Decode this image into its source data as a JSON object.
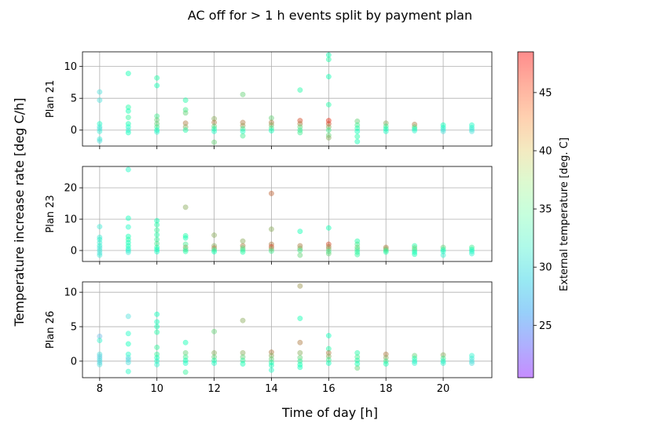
{
  "figure": {
    "title": "AC off for > 1 h events split by payment plan",
    "xlabel": "Time of day [h]",
    "ylabel": "Temperature increase rate [deg C/h]"
  },
  "colorbar": {
    "label": "External temperature [deg. C]",
    "range": [
      20.5,
      48.5
    ],
    "ticks": [
      25,
      30,
      35,
      40,
      45
    ],
    "colormap": "rainbow",
    "alpha": 0.45
  },
  "chart_data": [
    {
      "type": "scatter",
      "panel_label": "Plan 21",
      "xlim": [
        7.4,
        21.7
      ],
      "ylim": [
        -2.5,
        12.3
      ],
      "xticks": [
        8,
        10,
        12,
        14,
        16,
        18,
        20
      ],
      "yticks": [
        0,
        5,
        10
      ],
      "show_xtick_labels": false,
      "grid": true,
      "points": [
        [
          8,
          6.0,
          30
        ],
        [
          8,
          4.7,
          30
        ],
        [
          8,
          1.0,
          33
        ],
        [
          8,
          0.5,
          31
        ],
        [
          8,
          0.2,
          30
        ],
        [
          8,
          -0.2,
          31
        ],
        [
          8,
          -1.4,
          31
        ],
        [
          8,
          -1.7,
          30
        ],
        [
          9,
          8.9,
          35
        ],
        [
          9,
          3.6,
          36
        ],
        [
          9,
          3.0,
          35
        ],
        [
          9,
          2.0,
          37
        ],
        [
          9,
          1.0,
          35
        ],
        [
          9,
          0.5,
          33
        ],
        [
          9,
          0.0,
          31
        ],
        [
          9,
          -0.4,
          34
        ],
        [
          10,
          8.2,
          36
        ],
        [
          10,
          7.0,
          35
        ],
        [
          10,
          2.2,
          38
        ],
        [
          10,
          1.6,
          40
        ],
        [
          10,
          1.0,
          40
        ],
        [
          10,
          0.5,
          38
        ],
        [
          10,
          0.0,
          34
        ],
        [
          10,
          -0.3,
          32
        ],
        [
          11,
          4.7,
          36
        ],
        [
          11,
          3.2,
          38
        ],
        [
          11,
          2.7,
          40
        ],
        [
          11,
          1.1,
          44
        ],
        [
          11,
          0.5,
          42
        ],
        [
          11,
          0.0,
          36
        ],
        [
          12,
          1.8,
          42
        ],
        [
          12,
          1.2,
          44
        ],
        [
          12,
          0.6,
          40
        ],
        [
          12,
          0.2,
          36
        ],
        [
          12,
          -0.2,
          33
        ],
        [
          12,
          -1.9,
          40
        ],
        [
          13,
          5.6,
          40
        ],
        [
          13,
          1.2,
          44
        ],
        [
          13,
          0.7,
          43
        ],
        [
          13,
          0.2,
          38
        ],
        [
          13,
          -0.2,
          33
        ],
        [
          13,
          -0.9,
          38
        ],
        [
          14,
          1.9,
          40
        ],
        [
          14,
          1.2,
          44
        ],
        [
          14,
          0.8,
          42
        ],
        [
          14,
          0.3,
          38
        ],
        [
          14,
          -0.1,
          34
        ],
        [
          15,
          6.3,
          36
        ],
        [
          15,
          1.5,
          46
        ],
        [
          15,
          1.0,
          44
        ],
        [
          15,
          0.5,
          40
        ],
        [
          15,
          0.0,
          37
        ],
        [
          15,
          -0.4,
          38
        ],
        [
          16,
          11.8,
          35
        ],
        [
          16,
          11.1,
          36
        ],
        [
          16,
          8.4,
          35
        ],
        [
          16,
          4.0,
          36
        ],
        [
          16,
          1.5,
          47
        ],
        [
          16,
          1.0,
          46
        ],
        [
          16,
          0.5,
          42
        ],
        [
          16,
          0.0,
          38
        ],
        [
          16,
          -0.8,
          40
        ],
        [
          16,
          -1.2,
          42
        ],
        [
          17,
          1.4,
          40
        ],
        [
          17,
          0.8,
          38
        ],
        [
          17,
          0.3,
          36
        ],
        [
          17,
          -0.2,
          34
        ],
        [
          17,
          -1.0,
          36
        ],
        [
          17,
          -1.8,
          35
        ],
        [
          18,
          1.1,
          42
        ],
        [
          18,
          0.6,
          38
        ],
        [
          18,
          0.2,
          35
        ],
        [
          18,
          -0.2,
          33
        ],
        [
          19,
          0.9,
          44
        ],
        [
          19,
          0.5,
          40
        ],
        [
          19,
          0.2,
          35
        ],
        [
          19,
          -0.1,
          32
        ],
        [
          20,
          0.8,
          34
        ],
        [
          20,
          0.4,
          33
        ],
        [
          20,
          0.1,
          31
        ],
        [
          20,
          -0.2,
          30
        ],
        [
          21,
          0.8,
          33
        ],
        [
          21,
          0.4,
          32
        ],
        [
          21,
          0.1,
          31
        ],
        [
          21,
          -0.2,
          30
        ]
      ]
    },
    {
      "type": "scatter",
      "panel_label": "Plan 23",
      "xlim": [
        7.4,
        21.7
      ],
      "ylim": [
        -3.5,
        26.8
      ],
      "xticks": [
        8,
        10,
        12,
        14,
        16,
        18,
        20
      ],
      "yticks": [
        0,
        10,
        20
      ],
      "show_xtick_labels": false,
      "grid": true,
      "points": [
        [
          8,
          7.6,
          31
        ],
        [
          8,
          4.2,
          31
        ],
        [
          8,
          3.5,
          32
        ],
        [
          8,
          2.5,
          31
        ],
        [
          8,
          1.5,
          32
        ],
        [
          8,
          0.8,
          30
        ],
        [
          8,
          0.0,
          31
        ],
        [
          8,
          -0.8,
          30
        ],
        [
          8,
          -1.5,
          31
        ],
        [
          9,
          25.8,
          33
        ],
        [
          9,
          10.3,
          34
        ],
        [
          9,
          7.5,
          33
        ],
        [
          9,
          4.5,
          35
        ],
        [
          9,
          3.5,
          36
        ],
        [
          9,
          2.5,
          34
        ],
        [
          9,
          1.5,
          35
        ],
        [
          9,
          0.6,
          33
        ],
        [
          9,
          0.0,
          32
        ],
        [
          9,
          -0.6,
          31
        ],
        [
          10,
          9.5,
          35
        ],
        [
          10,
          8.2,
          36
        ],
        [
          10,
          6.5,
          37
        ],
        [
          10,
          5.0,
          36
        ],
        [
          10,
          3.5,
          37
        ],
        [
          10,
          2.2,
          38
        ],
        [
          10,
          1.0,
          36
        ],
        [
          10,
          0.3,
          34
        ],
        [
          10,
          -0.4,
          33
        ],
        [
          11,
          13.8,
          42
        ],
        [
          11,
          4.7,
          36
        ],
        [
          11,
          4.0,
          35
        ],
        [
          11,
          2.0,
          38
        ],
        [
          11,
          1.0,
          42
        ],
        [
          11,
          0.3,
          38
        ],
        [
          11,
          -0.3,
          36
        ],
        [
          12,
          4.9,
          42
        ],
        [
          12,
          1.5,
          42
        ],
        [
          12,
          0.8,
          44
        ],
        [
          12,
          0.2,
          38
        ],
        [
          12,
          -0.4,
          35
        ],
        [
          13,
          3.0,
          42
        ],
        [
          13,
          1.5,
          44
        ],
        [
          13,
          0.8,
          40
        ],
        [
          13,
          0.2,
          38
        ],
        [
          13,
          -0.5,
          36
        ],
        [
          14,
          18.2,
          45
        ],
        [
          14,
          6.8,
          42
        ],
        [
          14,
          2.0,
          44
        ],
        [
          14,
          1.2,
          46
        ],
        [
          14,
          0.5,
          42
        ],
        [
          14,
          -0.2,
          38
        ],
        [
          15,
          6.1,
          35
        ],
        [
          15,
          1.5,
          44
        ],
        [
          15,
          0.7,
          42
        ],
        [
          15,
          0.0,
          38
        ],
        [
          15,
          -1.5,
          40
        ],
        [
          16,
          7.2,
          35
        ],
        [
          16,
          2.0,
          46
        ],
        [
          16,
          1.2,
          44
        ],
        [
          16,
          0.5,
          42
        ],
        [
          16,
          -0.3,
          38
        ],
        [
          16,
          -1.0,
          40
        ],
        [
          17,
          3.0,
          36
        ],
        [
          17,
          2.0,
          38
        ],
        [
          17,
          1.0,
          40
        ],
        [
          17,
          0.3,
          38
        ],
        [
          17,
          -0.5,
          36
        ],
        [
          17,
          -1.3,
          37
        ],
        [
          18,
          1.0,
          44
        ],
        [
          18,
          0.5,
          42
        ],
        [
          18,
          0.0,
          38
        ],
        [
          18,
          -0.5,
          36
        ],
        [
          19,
          1.5,
          36
        ],
        [
          19,
          0.8,
          40
        ],
        [
          19,
          0.2,
          38
        ],
        [
          19,
          -0.5,
          34
        ],
        [
          19,
          -1.2,
          35
        ],
        [
          20,
          1.0,
          40
        ],
        [
          20,
          0.3,
          36
        ],
        [
          20,
          -0.3,
          33
        ],
        [
          20,
          -1.5,
          32
        ],
        [
          21,
          1.0,
          38
        ],
        [
          21,
          0.3,
          35
        ],
        [
          21,
          -0.3,
          33
        ],
        [
          21,
          -1.0,
          32
        ]
      ]
    },
    {
      "type": "scatter",
      "panel_label": "Plan 26",
      "xlim": [
        7.4,
        21.7
      ],
      "ylim": [
        -2.4,
        11.5
      ],
      "xticks": [
        8,
        10,
        12,
        14,
        16,
        18,
        20
      ],
      "yticks": [
        0,
        5,
        10
      ],
      "show_xtick_labels": true,
      "grid": true,
      "points": [
        [
          8,
          3.6,
          28
        ],
        [
          8,
          3.0,
          32
        ],
        [
          8,
          1.0,
          30
        ],
        [
          8,
          0.7,
          29
        ],
        [
          8,
          0.4,
          29
        ],
        [
          8,
          0.1,
          30
        ],
        [
          8,
          -0.2,
          29
        ],
        [
          8,
          -0.5,
          30
        ],
        [
          9,
          6.5,
          30
        ],
        [
          9,
          4.0,
          33
        ],
        [
          9,
          2.5,
          34
        ],
        [
          9,
          1.0,
          33
        ],
        [
          9,
          0.5,
          30
        ],
        [
          9,
          0.2,
          29
        ],
        [
          9,
          -0.2,
          30
        ],
        [
          9,
          -1.5,
          33
        ],
        [
          10,
          6.8,
          34
        ],
        [
          10,
          5.7,
          34
        ],
        [
          10,
          5.0,
          35
        ],
        [
          10,
          4.2,
          36
        ],
        [
          10,
          2.0,
          37
        ],
        [
          10,
          1.0,
          37
        ],
        [
          10,
          0.5,
          35
        ],
        [
          10,
          0.0,
          33
        ],
        [
          10,
          -0.5,
          32
        ],
        [
          11,
          2.7,
          35
        ],
        [
          11,
          1.2,
          40
        ],
        [
          11,
          0.6,
          38
        ],
        [
          11,
          0.1,
          35
        ],
        [
          11,
          -0.3,
          33
        ],
        [
          11,
          -1.6,
          37
        ],
        [
          12,
          4.3,
          40
        ],
        [
          12,
          1.2,
          42
        ],
        [
          12,
          0.6,
          40
        ],
        [
          12,
          0.1,
          36
        ],
        [
          12,
          -0.3,
          33
        ],
        [
          13,
          5.9,
          42
        ],
        [
          13,
          1.2,
          42
        ],
        [
          13,
          0.6,
          40
        ],
        [
          13,
          0.1,
          37
        ],
        [
          13,
          -0.4,
          35
        ],
        [
          14,
          1.3,
          44
        ],
        [
          14,
          0.8,
          42
        ],
        [
          14,
          0.3,
          40
        ],
        [
          14,
          -0.2,
          36
        ],
        [
          14,
          -0.6,
          34
        ],
        [
          14,
          -1.3,
          33
        ],
        [
          15,
          10.9,
          43
        ],
        [
          15,
          6.2,
          35
        ],
        [
          15,
          2.7,
          44
        ],
        [
          15,
          1.2,
          42
        ],
        [
          15,
          0.5,
          40
        ],
        [
          15,
          0.0,
          37
        ],
        [
          15,
          -0.5,
          35
        ],
        [
          15,
          -0.9,
          34
        ],
        [
          16,
          3.7,
          34
        ],
        [
          16,
          1.8,
          36
        ],
        [
          16,
          1.2,
          44
        ],
        [
          16,
          0.7,
          42
        ],
        [
          16,
          0.2,
          38
        ],
        [
          16,
          -0.3,
          34
        ],
        [
          17,
          1.2,
          36
        ],
        [
          17,
          0.6,
          38
        ],
        [
          17,
          0.1,
          36
        ],
        [
          17,
          -0.4,
          35
        ],
        [
          17,
          -1.0,
          40
        ],
        [
          18,
          1.0,
          44
        ],
        [
          18,
          0.5,
          42
        ],
        [
          18,
          0.0,
          38
        ],
        [
          18,
          -0.4,
          35
        ],
        [
          19,
          0.8,
          40
        ],
        [
          19,
          0.4,
          36
        ],
        [
          19,
          0.0,
          33
        ],
        [
          19,
          -0.3,
          32
        ],
        [
          20,
          0.9,
          42
        ],
        [
          20,
          0.4,
          38
        ],
        [
          20,
          0.0,
          33
        ],
        [
          20,
          -0.3,
          32
        ],
        [
          21,
          0.8,
          32
        ],
        [
          21,
          0.4,
          31
        ],
        [
          21,
          0.0,
          30
        ],
        [
          21,
          -0.3,
          30
        ]
      ]
    }
  ]
}
